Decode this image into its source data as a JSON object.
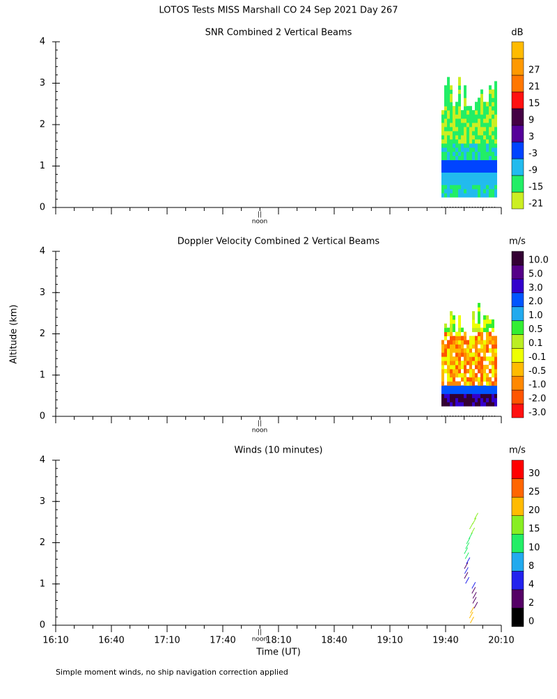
{
  "title": "LOTOS Tests MISS Marshall CO  24 Sep 2021 Day 267",
  "ylabel": "Altitude (km)",
  "noon_label": "noon",
  "footnote": "Simple moment winds, no ship navigation correction applied",
  "chart_data": [
    {
      "type": "contour",
      "title": "SNR Combined 2 Vertical Beams",
      "colorbar_title": "dB",
      "ylim": [
        0,
        4
      ],
      "yticks": [
        0,
        1,
        2,
        3,
        4
      ],
      "colorbar": {
        "ticks": [
          -21,
          -15,
          -9,
          -3,
          3,
          9,
          15,
          21,
          27
        ],
        "colors": [
          "#ccee22",
          "#22ee66",
          "#22bbee",
          "#0044ff",
          "#550099",
          "#440044",
          "#ff1111",
          "#ff7700",
          "#ff9900",
          "#ffbb00"
        ]
      }
    },
    {
      "type": "contour",
      "title": "Doppler Velocity Combined 2 Vertical Beams",
      "colorbar_title": "m/s",
      "ylim": [
        0,
        4
      ],
      "yticks": [
        0,
        1,
        2,
        3,
        4
      ],
      "colorbar": {
        "ticks": [
          {
            "value": -3,
            "label": "-3.0"
          },
          {
            "value": -2,
            "label": "-2.0"
          },
          {
            "value": -1,
            "label": "-1.0"
          },
          {
            "value": -0.5,
            "label": "-0.5"
          },
          {
            "value": -0.1,
            "label": "-0.1"
          },
          {
            "value": 0.1,
            "label": "0.1"
          },
          {
            "value": 0.5,
            "label": "0.5"
          },
          {
            "value": 1,
            "label": "1.0"
          },
          {
            "value": 2,
            "label": "2.0"
          },
          {
            "value": 3,
            "label": "3.0"
          },
          {
            "value": 5,
            "label": "5.0"
          },
          {
            "value": 10,
            "label": "10.0"
          }
        ],
        "colors": [
          "#ff1111",
          "#ff5500",
          "#ff8800",
          "#ffbb00",
          "#eeff00",
          "#bbee22",
          "#33ee33",
          "#22aaee",
          "#0055ff",
          "#3300cc",
          "#550088",
          "#330033"
        ]
      }
    },
    {
      "type": "barbs",
      "title": "Winds (10 minutes)",
      "colorbar_title": "m/s",
      "ylim": [
        0,
        4
      ],
      "yticks": [
        0,
        1,
        2,
        3,
        4
      ],
      "xlabel": "Time (UT)",
      "xticks": [
        "16:10",
        "16:40",
        "17:10",
        "17:40",
        "18:10",
        "18:40",
        "19:10",
        "19:40",
        "20:10"
      ],
      "colorbar": {
        "ticks": [
          0,
          2,
          4,
          8,
          10,
          15,
          20,
          25,
          30
        ],
        "colors": [
          "#000000",
          "#550066",
          "#2222ee",
          "#22aaee",
          "#22ee66",
          "#88ee22",
          "#ffbb00",
          "#ff6600",
          "#ff0000"
        ]
      }
    }
  ]
}
